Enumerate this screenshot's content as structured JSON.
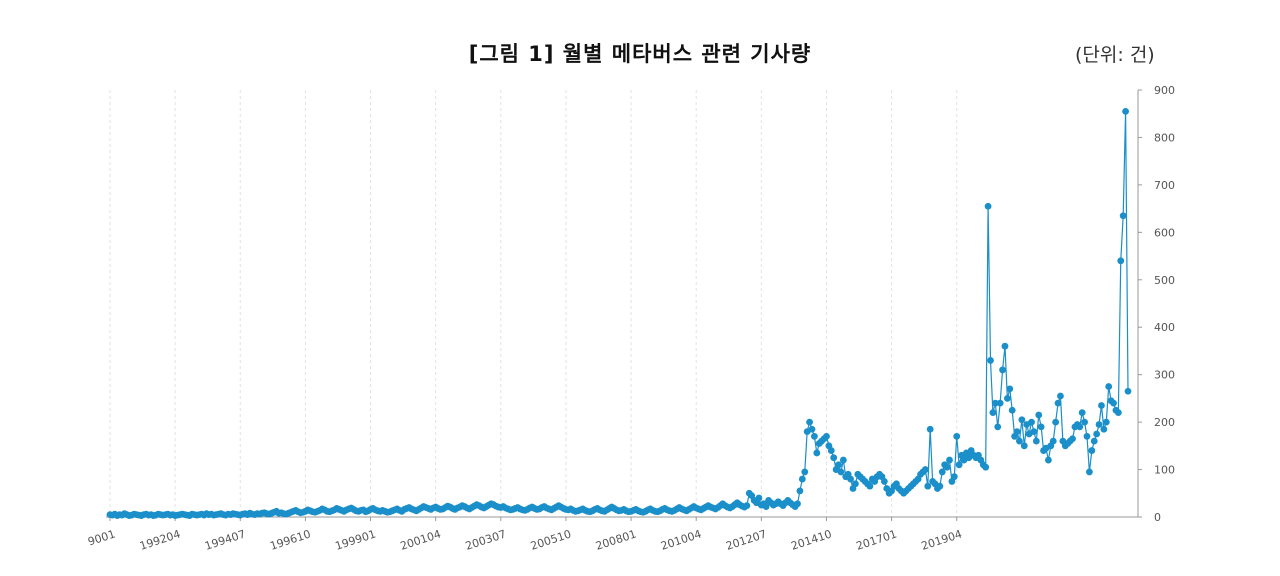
{
  "title": "[그림 1] 월별 메타버스 관련 기사량",
  "unit_label": "(단위: 건)",
  "chart_data": {
    "type": "scatter",
    "title": "[그림 1] 월별 메타버스 관련 기사량",
    "xlabel": "",
    "ylabel": "",
    "ylim": [
      0,
      900
    ],
    "y_ticks": [
      0,
      100,
      200,
      300,
      400,
      500,
      600,
      700,
      800,
      900
    ],
    "x_tick_labels": [
      "9001",
      "199204",
      "199407",
      "199610",
      "199901",
      "200104",
      "200307",
      "200510",
      "200801",
      "201004",
      "201207",
      "201410",
      "201701",
      "201904"
    ],
    "start_month": "1990-01",
    "end_month": "2021-10",
    "grid": "vertical-dashed",
    "legend": "none",
    "color": "#1a8fc9",
    "series": [
      {
        "name": "",
        "values": [
          5,
          4,
          6,
          3,
          5,
          4,
          7,
          5,
          3,
          4,
          6,
          5,
          4,
          3,
          5,
          6,
          4,
          5,
          3,
          4,
          6,
          5,
          4,
          5,
          6,
          4,
          5,
          3,
          4,
          5,
          6,
          5,
          4,
          3,
          6,
          5,
          4,
          5,
          6,
          4,
          7,
          5,
          6,
          4,
          5,
          6,
          7,
          5,
          4,
          6,
          5,
          7,
          6,
          5,
          4,
          6,
          7,
          5,
          8,
          6,
          5,
          7,
          6,
          8,
          9,
          7,
          6,
          8,
          10,
          12,
          8,
          9,
          7,
          6,
          8,
          10,
          12,
          14,
          11,
          9,
          10,
          12,
          15,
          13,
          11,
          10,
          12,
          14,
          17,
          15,
          12,
          11,
          13,
          15,
          18,
          16,
          14,
          12,
          15,
          17,
          19,
          16,
          13,
          12,
          14,
          15,
          11,
          13,
          16,
          18,
          15,
          13,
          12,
          14,
          12,
          10,
          11,
          13,
          15,
          17,
          14,
          12,
          16,
          18,
          20,
          17,
          15,
          13,
          16,
          19,
          22,
          20,
          18,
          16,
          19,
          21,
          18,
          16,
          17,
          20,
          23,
          21,
          18,
          16,
          19,
          21,
          24,
          22,
          19,
          17,
          20,
          23,
          26,
          24,
          21,
          19,
          22,
          25,
          28,
          26,
          23,
          21,
          20,
          22,
          19,
          17,
          15,
          16,
          18,
          20,
          17,
          15,
          14,
          16,
          19,
          21,
          18,
          16,
          17,
          20,
          22,
          19,
          17,
          15,
          18,
          21,
          24,
          21,
          18,
          16,
          15,
          17,
          14,
          12,
          13,
          15,
          17,
          14,
          12,
          11,
          13,
          16,
          18,
          15,
          13,
          12,
          15,
          18,
          21,
          18,
          15,
          13,
          14,
          16,
          13,
          11,
          12,
          14,
          16,
          13,
          11,
          10,
          12,
          15,
          17,
          14,
          12,
          11,
          13,
          16,
          18,
          15,
          13,
          12,
          14,
          17,
          20,
          17,
          15,
          13,
          16,
          19,
          22,
          19,
          17,
          15,
          18,
          21,
          24,
          21,
          19,
          17,
          20,
          24,
          28,
          24,
          21,
          19,
          22,
          26,
          30,
          26,
          23,
          21,
          24,
          50,
          45,
          35,
          30,
          40,
          25,
          28,
          22,
          35,
          30,
          25,
          28,
          32,
          28,
          24,
          30,
          35,
          30,
          26,
          22,
          28,
          55,
          80,
          95,
          180,
          200,
          185,
          170,
          135,
          155,
          160,
          165,
          170,
          150,
          140,
          125,
          100,
          110,
          95,
          120,
          85,
          90,
          80,
          60,
          70,
          90,
          85,
          80,
          75,
          70,
          65,
          80,
          75,
          85,
          90,
          85,
          75,
          60,
          50,
          55,
          65,
          70,
          60,
          55,
          50,
          55,
          60,
          65,
          70,
          75,
          80,
          90,
          95,
          100,
          65,
          185,
          75,
          70,
          60,
          65,
          95,
          110,
          105,
          120,
          75,
          85,
          170,
          110,
          130,
          120,
          135,
          125,
          140,
          130,
          125,
          130,
          120,
          110,
          105,
          655,
          330,
          220,
          240,
          190,
          240,
          310,
          360,
          250,
          270,
          225,
          170,
          180,
          160,
          205,
          150,
          195,
          175,
          200,
          180,
          160,
          215,
          190,
          140,
          145,
          120,
          150,
          160,
          200,
          240,
          255,
          160,
          150,
          155,
          160,
          165,
          190,
          195,
          190,
          220,
          200,
          170,
          95,
          140,
          160,
          175,
          195,
          235,
          185,
          200,
          275,
          245,
          240,
          225,
          220,
          540,
          635,
          855,
          265
        ]
      }
    ]
  }
}
